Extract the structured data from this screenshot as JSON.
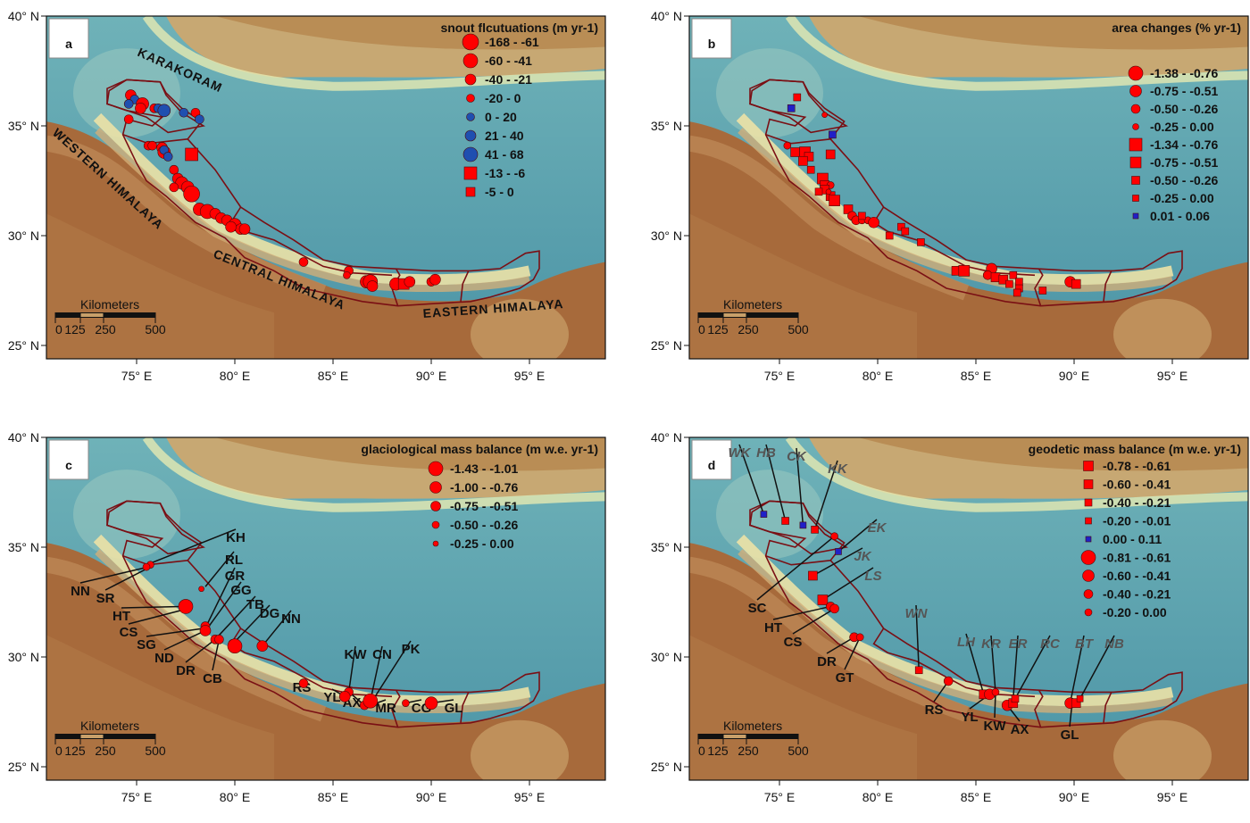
{
  "colors": {
    "red": "#ff0000",
    "blue": "#1f4fb0",
    "purple_blue": "#2020c8",
    "boundary": "#7a0f14",
    "label_gray": "#555555"
  },
  "axes": {
    "lat_ticks": [
      "40° N",
      "35° N",
      "30° N",
      "25° N"
    ],
    "lon_ticks": [
      "75° E",
      "80° E",
      "85° E",
      "90° E",
      "95° E"
    ]
  },
  "scalebar": {
    "title": "Kilometers",
    "ticks": [
      "0",
      "125",
      "250",
      "500"
    ]
  },
  "regions": [
    "KARAKORAM",
    "WESTERN HIMALAYA",
    "CENTRAL HIMALAYA",
    "EASTERN HIMALAYA"
  ],
  "panels": [
    {
      "letter": "a",
      "legend_title": "snout flcutuations  (m yr-1)",
      "legend": [
        {
          "shape": "circle",
          "color": "red",
          "size": 9,
          "label": "-168 - -61"
        },
        {
          "shape": "circle",
          "color": "red",
          "size": 8,
          "label": "-60 - -41"
        },
        {
          "shape": "circle",
          "color": "red",
          "size": 6,
          "label": "-40 - -21"
        },
        {
          "shape": "circle",
          "color": "red",
          "size": 4.5,
          "label": "-20 - 0"
        },
        {
          "shape": "circle",
          "color": "blue",
          "size": 4.5,
          "label": "0 - 20"
        },
        {
          "shape": "circle",
          "color": "blue",
          "size": 6,
          "label": "21 - 40"
        },
        {
          "shape": "circle",
          "color": "blue",
          "size": 8,
          "label": "41 - 68"
        },
        {
          "shape": "square",
          "color": "red",
          "size": 14,
          "label": "-13 - -6"
        },
        {
          "shape": "square",
          "color": "red",
          "size": 10,
          "label": "-5 - 0"
        }
      ]
    },
    {
      "letter": "b",
      "legend_title": "area changes (% yr-1)",
      "legend": [
        {
          "shape": "circle",
          "color": "red",
          "size": 8,
          "label": "-1.38 - -0.76"
        },
        {
          "shape": "circle",
          "color": "red",
          "size": 6.5,
          "label": "-0.75 - -0.51"
        },
        {
          "shape": "circle",
          "color": "red",
          "size": 5,
          "label": "-0.50 - -0.26"
        },
        {
          "shape": "circle",
          "color": "red",
          "size": 3.5,
          "label": "-0.25 - 0.00"
        },
        {
          "shape": "square",
          "color": "red",
          "size": 14,
          "label": "-1.34 - -0.76"
        },
        {
          "shape": "square",
          "color": "red",
          "size": 12,
          "label": "-0.75 - -0.51"
        },
        {
          "shape": "square",
          "color": "red",
          "size": 9,
          "label": "-0.50 - -0.26"
        },
        {
          "shape": "square",
          "color": "red",
          "size": 7,
          "label": "-0.25 - 0.00"
        },
        {
          "shape": "square",
          "color": "purple_blue",
          "size": 6,
          "label": "0.01 - 0.06"
        }
      ]
    },
    {
      "letter": "c",
      "legend_title": "glaciological mass balance (m w.e. yr-1)",
      "legend": [
        {
          "shape": "circle",
          "color": "red",
          "size": 8,
          "label": "-1.43 - -1.01"
        },
        {
          "shape": "circle",
          "color": "red",
          "size": 6.5,
          "label": "-1.00 - -0.76"
        },
        {
          "shape": "circle",
          "color": "red",
          "size": 5.5,
          "label": "-0.75 - -0.51"
        },
        {
          "shape": "circle",
          "color": "red",
          "size": 4,
          "label": "-0.50 - -0.26"
        },
        {
          "shape": "circle",
          "color": "red",
          "size": 3,
          "label": "-0.25 - 0.00"
        }
      ],
      "glaciers": [
        "KH",
        "RL",
        "GR",
        "GG",
        "TB",
        "DG",
        "NN",
        "NN",
        "SR",
        "HT",
        "CS",
        "SG",
        "ND",
        "DR",
        "CB",
        "RS",
        "KW",
        "CN",
        "PK",
        "YL",
        "AX",
        "MR",
        "CG",
        "GL"
      ]
    },
    {
      "letter": "d",
      "legend_title": "geodetic mass balance (m w.e. yr-1)",
      "legend": [
        {
          "shape": "square",
          "color": "red",
          "size": 11,
          "label": "-0.78 - -0.61"
        },
        {
          "shape": "square",
          "color": "red",
          "size": 10,
          "label": "-0.60 - -0.41"
        },
        {
          "shape": "square",
          "color": "red",
          "size": 8,
          "label": "-0.40 - -0.21"
        },
        {
          "shape": "square",
          "color": "red",
          "size": 7,
          "label": "-0.20 - -0.01"
        },
        {
          "shape": "square",
          "color": "purple_blue",
          "size": 6,
          "label": "0.00 - 0.11"
        },
        {
          "shape": "circle",
          "color": "red",
          "size": 8,
          "label": "-0.81 - -0.61"
        },
        {
          "shape": "circle",
          "color": "red",
          "size": 6.5,
          "label": "-0.60 - -0.41"
        },
        {
          "shape": "circle",
          "color": "red",
          "size": 5,
          "label": "-0.40 - -0.21"
        },
        {
          "shape": "circle",
          "color": "red",
          "size": 4,
          "label": "-0.20 - 0.00"
        }
      ],
      "glaciers_geodetic_italic": [
        "WK",
        "HB",
        "CK",
        "KK",
        "EK",
        "JK",
        "LS",
        "WN",
        "LH",
        "KR",
        "ER",
        "RC",
        "BT",
        "NB"
      ],
      "glaciers_glaciological": [
        "SC",
        "HT",
        "CS",
        "DR",
        "GT",
        "RS",
        "YL",
        "KW",
        "AX",
        "GL"
      ]
    }
  ]
}
